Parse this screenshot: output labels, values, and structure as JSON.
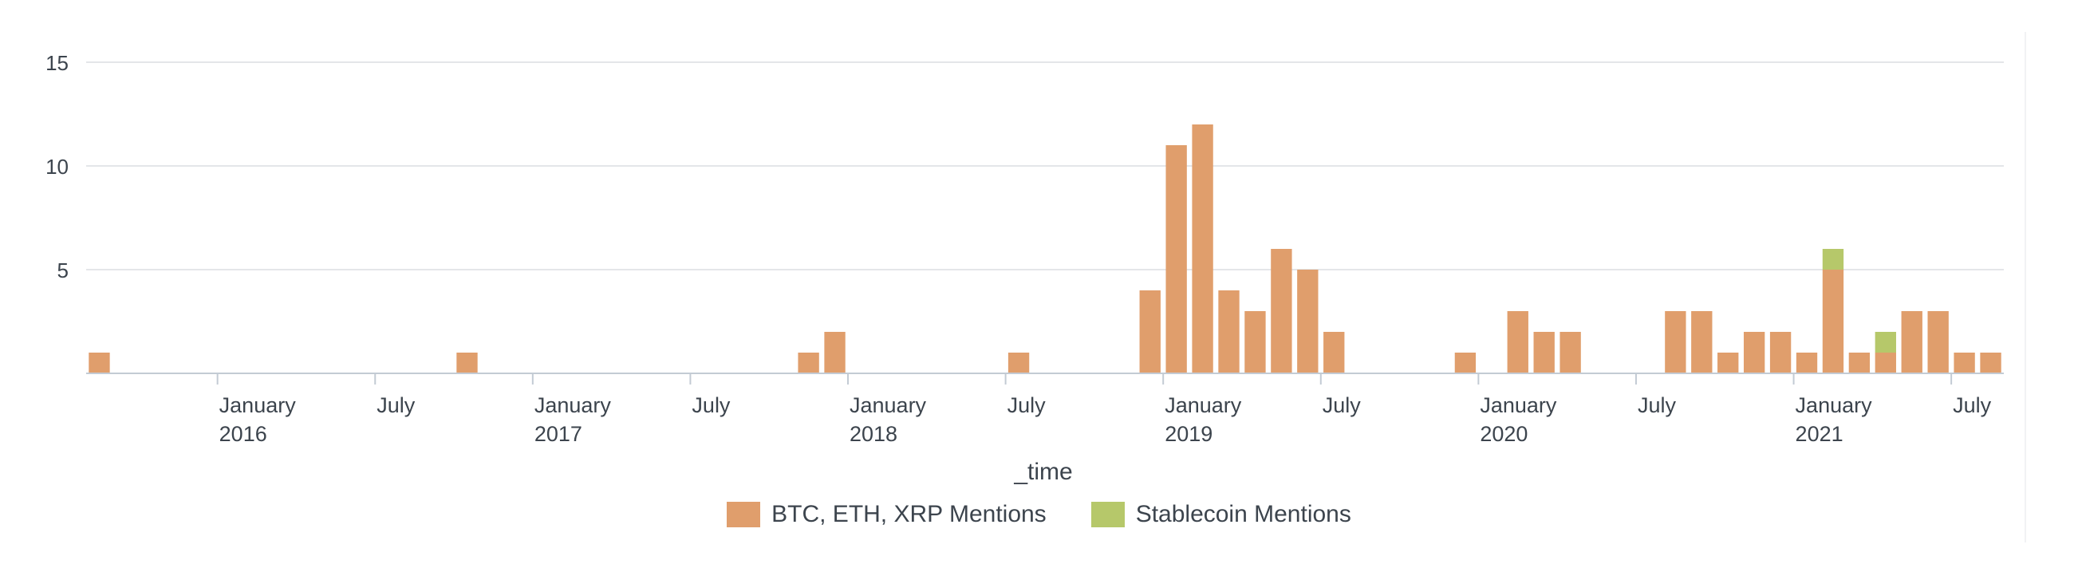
{
  "chart_data": {
    "type": "bar",
    "stacked": true,
    "xlabel": "_time",
    "ylim": [
      0,
      15
    ],
    "yticks": [
      5,
      10,
      15
    ],
    "grid": true,
    "legend_position": "bottom",
    "x_tick_labels": [
      {
        "month": "2016-01",
        "line1": "January",
        "line2": "2016"
      },
      {
        "month": "2016-07",
        "line1": "July",
        "line2": ""
      },
      {
        "month": "2017-01",
        "line1": "January",
        "line2": "2017"
      },
      {
        "month": "2017-07",
        "line1": "July",
        "line2": ""
      },
      {
        "month": "2018-01",
        "line1": "January",
        "line2": "2018"
      },
      {
        "month": "2018-07",
        "line1": "July",
        "line2": ""
      },
      {
        "month": "2019-01",
        "line1": "January",
        "line2": "2019"
      },
      {
        "month": "2019-07",
        "line1": "July",
        "line2": ""
      },
      {
        "month": "2020-01",
        "line1": "January",
        "line2": "2020"
      },
      {
        "month": "2020-07",
        "line1": "July",
        "line2": ""
      },
      {
        "month": "2021-01",
        "line1": "January",
        "line2": "2021"
      },
      {
        "month": "2021-07",
        "line1": "July",
        "line2": ""
      }
    ],
    "x_start": "2015-08",
    "x_end": "2021-08",
    "series": [
      {
        "name": "BTC, ETH, XRP Mentions",
        "color": "#e09e6c",
        "points": [
          [
            "2015-08",
            1
          ],
          [
            "2016-10",
            1
          ],
          [
            "2017-11",
            1
          ],
          [
            "2017-12",
            2
          ],
          [
            "2018-07",
            1
          ],
          [
            "2018-12",
            4
          ],
          [
            "2019-01",
            11
          ],
          [
            "2019-02",
            12
          ],
          [
            "2019-03",
            4
          ],
          [
            "2019-04",
            3
          ],
          [
            "2019-05",
            6
          ],
          [
            "2019-06",
            5
          ],
          [
            "2019-07",
            2
          ],
          [
            "2019-12",
            1
          ],
          [
            "2020-02",
            3
          ],
          [
            "2020-03",
            2
          ],
          [
            "2020-04",
            2
          ],
          [
            "2020-08",
            3
          ],
          [
            "2020-09",
            3
          ],
          [
            "2020-10",
            1
          ],
          [
            "2020-11",
            2
          ],
          [
            "2020-12",
            2
          ],
          [
            "2021-01",
            1
          ],
          [
            "2021-02",
            5
          ],
          [
            "2021-03",
            1
          ],
          [
            "2021-04",
            1
          ],
          [
            "2021-05",
            3
          ],
          [
            "2021-06",
            3
          ],
          [
            "2021-07",
            1
          ],
          [
            "2021-08",
            1
          ]
        ]
      },
      {
        "name": "Stablecoin Mentions",
        "color": "#b6c86a",
        "points": [
          [
            "2021-02",
            1
          ],
          [
            "2021-04",
            1
          ]
        ]
      }
    ]
  },
  "legend": {
    "item1": "BTC, ETH, XRP Mentions",
    "item2": "Stablecoin Mentions"
  }
}
